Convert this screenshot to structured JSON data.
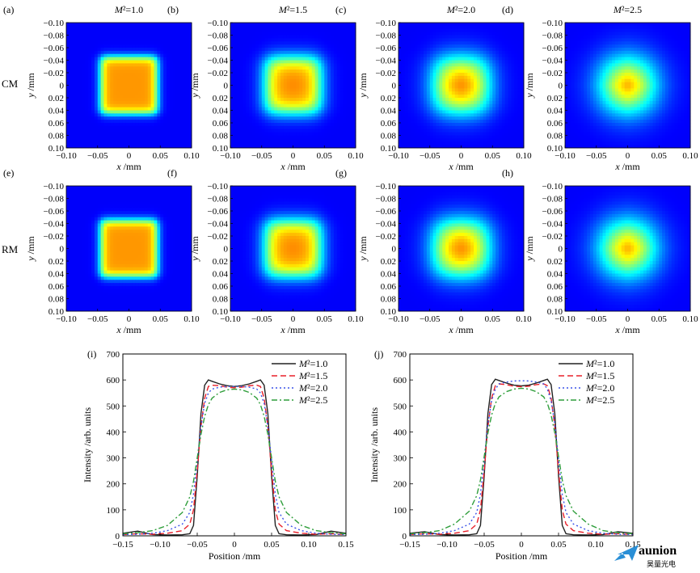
{
  "figure": {
    "row_labels": [
      "CM",
      "RM"
    ],
    "watermark": {
      "name": "aunion",
      "sub": "昊量光电"
    }
  },
  "chart_data": [
    {
      "type": "heatmap",
      "panel": "(a)",
      "row": "CM",
      "title": "M²=1.0",
      "xlabel": "x /mm",
      "ylabel": "y /mm",
      "xlim": [
        -0.1,
        0.1
      ],
      "ylim": [
        -0.1,
        0.1
      ],
      "x_ticks": [
        "−0.10",
        "−0.05",
        "0",
        "0.05",
        "0.10"
      ],
      "y_ticks": [
        "−0.10",
        "−0.08",
        "−0.06",
        "−0.04",
        "−0.02",
        "0",
        "0.02",
        "0.04",
        "0.06",
        "0.08",
        "0.10"
      ],
      "beam": {
        "half_width": 0.045,
        "edge_softness": 0.004,
        "center_peak": 0.0
      }
    },
    {
      "type": "heatmap",
      "panel": "(b)",
      "row": "CM",
      "title": "M²=1.5",
      "xlabel": "x /mm",
      "ylabel": "y /mm",
      "xlim": [
        -0.1,
        0.1
      ],
      "ylim": [
        -0.1,
        0.1
      ],
      "x_ticks": [
        "−0.10",
        "−0.05",
        "0",
        "0.05",
        "0.10"
      ],
      "y_ticks": [
        "−0.10",
        "−0.08",
        "−0.06",
        "−0.04",
        "−0.02",
        "0",
        "0.02",
        "0.04",
        "0.06",
        "0.08",
        "0.10"
      ],
      "beam": {
        "half_width": 0.043,
        "edge_softness": 0.008,
        "center_peak": 0.1
      }
    },
    {
      "type": "heatmap",
      "panel": "(c)",
      "row": "CM",
      "title": "M²=2.0",
      "xlabel": "x /mm",
      "ylabel": "y /mm",
      "xlim": [
        -0.1,
        0.1
      ],
      "ylim": [
        -0.1,
        0.1
      ],
      "x_ticks": [
        "−0.10",
        "−0.05",
        "0",
        "0.05",
        "0.10"
      ],
      "y_ticks": [
        "−0.10",
        "−0.08",
        "−0.06",
        "−0.04",
        "−0.02",
        "0",
        "0.02",
        "0.04",
        "0.06",
        "0.08",
        "0.10"
      ],
      "beam": {
        "half_width": 0.041,
        "edge_softness": 0.012,
        "center_peak": 0.3
      }
    },
    {
      "type": "heatmap",
      "panel": "(d)",
      "row": "CM",
      "title": "M²=2.5",
      "xlabel": "x /mm",
      "ylabel": "y /mm",
      "xlim": [
        -0.1,
        0.1
      ],
      "ylim": [
        -0.1,
        0.1
      ],
      "x_ticks": [
        "−0.10",
        "−0.05",
        "0",
        "0.05",
        "0.10"
      ],
      "y_ticks": [
        "−0.10",
        "−0.08",
        "−0.06",
        "−0.04",
        "−0.02",
        "0",
        "0.02",
        "0.04",
        "0.06",
        "0.08",
        "0.10"
      ],
      "beam": {
        "half_width": 0.038,
        "edge_softness": 0.016,
        "center_peak": 0.55
      }
    },
    {
      "type": "heatmap",
      "panel": "(e)",
      "row": "RM",
      "title": "",
      "xlabel": "x /mm",
      "ylabel": "y /mm",
      "xlim": [
        -0.1,
        0.1
      ],
      "ylim": [
        -0.1,
        0.1
      ],
      "x_ticks": [
        "−0.10",
        "−0.05",
        "0",
        "0.05",
        "0.10"
      ],
      "y_ticks": [
        "−0.10",
        "−0.08",
        "−0.06",
        "−0.04",
        "−0.02",
        "0",
        "0.02",
        "0.04",
        "0.06",
        "0.08",
        "0.10"
      ],
      "beam": {
        "half_width": 0.045,
        "edge_softness": 0.004,
        "center_peak": 0.0
      }
    },
    {
      "type": "heatmap",
      "panel": "(f)",
      "row": "RM",
      "title": "",
      "xlabel": "x /mm",
      "ylabel": "y /mm",
      "xlim": [
        -0.1,
        0.1
      ],
      "ylim": [
        -0.1,
        0.1
      ],
      "x_ticks": [
        "−0.10",
        "−0.05",
        "0",
        "0.05",
        "0.10"
      ],
      "y_ticks": [
        "−0.10",
        "−0.08",
        "−0.06",
        "−0.04",
        "−0.02",
        "0",
        "0.02",
        "0.04",
        "0.06",
        "0.08",
        "0.10"
      ],
      "beam": {
        "half_width": 0.043,
        "edge_softness": 0.008,
        "center_peak": 0.1
      }
    },
    {
      "type": "heatmap",
      "panel": "(g)",
      "row": "RM",
      "title": "",
      "xlabel": "x /mm",
      "ylabel": "y /mm",
      "xlim": [
        -0.1,
        0.1
      ],
      "ylim": [
        -0.1,
        0.1
      ],
      "x_ticks": [
        "−0.10",
        "−0.05",
        "0",
        "0.05",
        "0.10"
      ],
      "y_ticks": [
        "−0.10",
        "−0.08",
        "−0.06",
        "−0.04",
        "−0.02",
        "0",
        "0.02",
        "0.04",
        "0.06",
        "0.08",
        "0.10"
      ],
      "beam": {
        "half_width": 0.041,
        "edge_softness": 0.012,
        "center_peak": 0.3
      }
    },
    {
      "type": "heatmap",
      "panel": "(h)",
      "row": "RM",
      "title": "",
      "xlabel": "x /mm",
      "ylabel": "y /mm",
      "xlim": [
        -0.1,
        0.1
      ],
      "ylim": [
        -0.1,
        0.1
      ],
      "x_ticks": [
        "−0.10",
        "−0.05",
        "0",
        "0.05",
        "0.10"
      ],
      "y_ticks": [
        "−0.10",
        "−0.08",
        "−0.06",
        "−0.04",
        "−0.02",
        "0",
        "0.02",
        "0.04",
        "0.06",
        "0.08",
        "0.10"
      ],
      "beam": {
        "half_width": 0.038,
        "edge_softness": 0.016,
        "center_peak": 0.55
      }
    },
    {
      "type": "line",
      "panel": "(i)",
      "xlabel": "Position /mm",
      "ylabel": "Intensity /arb. units",
      "xlim": [
        -0.15,
        0.15
      ],
      "ylim": [
        0,
        700
      ],
      "x_ticks": [
        -0.15,
        -0.1,
        -0.05,
        0,
        0.05,
        0.1,
        0.15
      ],
      "x_tick_labels": [
        "−0.15",
        "−0.10",
        "−0.05",
        "0",
        "0.05",
        "0.10",
        "0.15"
      ],
      "y_ticks": [
        0,
        100,
        200,
        300,
        400,
        500,
        600,
        700
      ],
      "legend": "top-right",
      "x": [
        -0.15,
        -0.13,
        -0.11,
        -0.09,
        -0.07,
        -0.06,
        -0.055,
        -0.05,
        -0.045,
        -0.04,
        -0.035,
        -0.03,
        -0.02,
        -0.01,
        0,
        0.01,
        0.02,
        0.03,
        0.035,
        0.04,
        0.045,
        0.05,
        0.055,
        0.06,
        0.07,
        0.09,
        0.11,
        0.13,
        0.15
      ],
      "series": [
        {
          "name": "M²=1.0",
          "color": "#222222",
          "dash": "solid",
          "values": [
            10,
            18,
            5,
            3,
            4,
            8,
            40,
            230,
            470,
            580,
            600,
            595,
            585,
            578,
            575,
            578,
            585,
            595,
            600,
            580,
            470,
            230,
            40,
            8,
            4,
            3,
            5,
            18,
            10
          ]
        },
        {
          "name": "M²=1.5",
          "color": "#e8202a",
          "dash": "dashed",
          "values": [
            5,
            8,
            6,
            10,
            20,
            45,
            100,
            250,
            420,
            530,
            575,
            580,
            578,
            572,
            570,
            572,
            578,
            580,
            575,
            530,
            420,
            250,
            100,
            45,
            20,
            10,
            6,
            8,
            5
          ]
        },
        {
          "name": "M²=2.0",
          "color": "#3a52e8",
          "dash": "dotted",
          "values": [
            5,
            6,
            10,
            20,
            45,
            90,
            160,
            290,
            420,
            510,
            550,
            565,
            572,
            575,
            575,
            575,
            572,
            565,
            550,
            510,
            420,
            290,
            160,
            90,
            45,
            20,
            10,
            6,
            5
          ]
        },
        {
          "name": "M²=2.5",
          "color": "#2f9e3b",
          "dash": "dashdot",
          "values": [
            8,
            12,
            20,
            40,
            90,
            150,
            210,
            300,
            390,
            460,
            505,
            530,
            552,
            562,
            565,
            562,
            552,
            530,
            505,
            460,
            390,
            300,
            210,
            150,
            90,
            40,
            20,
            12,
            8
          ]
        }
      ]
    },
    {
      "type": "line",
      "panel": "(j)",
      "xlabel": "Position /mm",
      "ylabel": "Intensity /arb. units",
      "xlim": [
        -0.15,
        0.15
      ],
      "ylim": [
        0,
        700
      ],
      "x_ticks": [
        -0.15,
        -0.1,
        -0.05,
        0,
        0.05,
        0.1,
        0.15
      ],
      "x_tick_labels": [
        "−0.15",
        "−0.10",
        "−0.05",
        "0",
        "0.05",
        "0.10",
        "0.15"
      ],
      "y_ticks": [
        0,
        100,
        200,
        300,
        400,
        500,
        600,
        700
      ],
      "legend": "top-right",
      "x": [
        -0.15,
        -0.13,
        -0.11,
        -0.09,
        -0.07,
        -0.06,
        -0.055,
        -0.05,
        -0.045,
        -0.04,
        -0.035,
        -0.03,
        -0.02,
        -0.01,
        0,
        0.01,
        0.02,
        0.03,
        0.035,
        0.04,
        0.045,
        0.05,
        0.055,
        0.06,
        0.07,
        0.09,
        0.11,
        0.13,
        0.15
      ],
      "series": [
        {
          "name": "M²=1.0",
          "color": "#222222",
          "dash": "solid",
          "values": [
            10,
            16,
            5,
            3,
            4,
            8,
            40,
            230,
            470,
            582,
            603,
            598,
            588,
            580,
            577,
            580,
            588,
            598,
            603,
            582,
            470,
            230,
            40,
            8,
            4,
            3,
            5,
            16,
            10
          ]
        },
        {
          "name": "M²=1.5",
          "color": "#e8202a",
          "dash": "dashed",
          "values": [
            5,
            8,
            6,
            10,
            20,
            45,
            100,
            250,
            420,
            530,
            578,
            585,
            582,
            576,
            574,
            576,
            582,
            585,
            578,
            530,
            420,
            250,
            100,
            45,
            20,
            10,
            6,
            8,
            5
          ]
        },
        {
          "name": "M²=2.0",
          "color": "#3a52e8",
          "dash": "dotted",
          "values": [
            5,
            6,
            10,
            20,
            45,
            90,
            160,
            295,
            430,
            520,
            565,
            585,
            592,
            596,
            597,
            596,
            592,
            585,
            565,
            520,
            430,
            295,
            160,
            90,
            45,
            20,
            10,
            6,
            5
          ]
        },
        {
          "name": "M²=2.5",
          "color": "#2f9e3b",
          "dash": "dashdot",
          "values": [
            8,
            12,
            20,
            45,
            95,
            155,
            215,
            305,
            395,
            465,
            510,
            535,
            555,
            565,
            568,
            565,
            555,
            535,
            510,
            465,
            395,
            305,
            215,
            155,
            95,
            45,
            20,
            12,
            8
          ]
        }
      ]
    }
  ]
}
